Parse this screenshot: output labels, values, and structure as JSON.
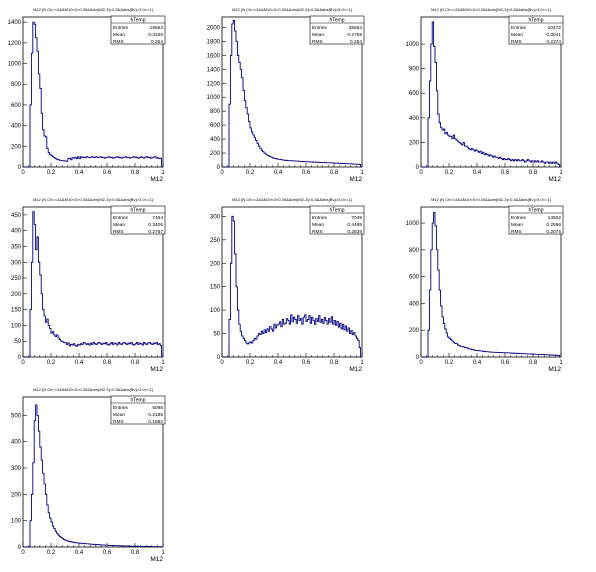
{
  "panels": [
    {
      "title": "M12 {N Ch>=2&&M10<0>0.30&&dm{M2-3}<0.5&&abs{Bv}>3.0<=1}",
      "stats": {
        "name": "hTemp",
        "entries_label": "Entries",
        "entries": "19653",
        "mean_label": "Mean",
        "mean": "0.3156",
        "rms_label": "RMS",
        "rms": "0.264"
      },
      "xlabel": "M12",
      "yticks": [
        0,
        200,
        400,
        600,
        800,
        1000,
        1200,
        1400
      ],
      "ymax": 1450
    },
    {
      "title": "M12 {N Ch>=2&&M10<0>0.30&&dm{M2-3}<0.5&&abs{Bv}>3.0<=1}",
      "stats": {
        "name": "hTemp",
        "entries_label": "Entries",
        "entries": "35564",
        "mean_label": "Mean",
        "mean": "0.2759",
        "rms_label": "RMS",
        "rms": "0.254"
      },
      "xlabel": "M12",
      "yticks": [
        0,
        200,
        400,
        600,
        800,
        1000,
        1200,
        1400,
        1600,
        1800,
        2000
      ],
      "ymax": 2150
    },
    {
      "title": "M12 {N Ch>=2&&M10<0>0.30&&dm{M2-3}<0.5&&abs{Bv}>3.0<=1}",
      "stats": {
        "name": "hTemp",
        "entries_label": "Entries",
        "entries": "10472",
        "mean_label": "Mean",
        "mean": "0.3041",
        "rms_label": "RMS",
        "rms": "0.2374"
      },
      "xlabel": "M12",
      "yticks": [
        0,
        200,
        400,
        600,
        800,
        1000
      ],
      "ymax": 1220
    },
    {
      "title": "M12 {N Ch>=2&&M10<0>0.30&&dm{M2-3}<0.5&&abs{Bv}>3.0<=1}",
      "stats": {
        "name": "hTemp",
        "entries_label": "Entries",
        "entries": "7464",
        "mean_label": "Mean",
        "mean": "0.3406",
        "rms_label": "RMS",
        "rms": "0.2767"
      },
      "xlabel": "M12",
      "yticks": [
        0,
        50,
        100,
        150,
        200,
        250,
        300,
        350,
        400,
        450
      ],
      "ymax": 475
    },
    {
      "title": "M12 {N Ch>=2&&M10<0>0.30&&dm{M2-3}<0.5&&abs{Bv}>3.0<=1}",
      "stats": {
        "name": "hTemp",
        "entries_label": "Entries",
        "entries": "7049",
        "mean_label": "Mean",
        "mean": "0.4495",
        "rms_label": "RMS",
        "rms": "0.2839"
      },
      "xlabel": "M12",
      "yticks": [
        0,
        50,
        100,
        150,
        200,
        250,
        300
      ],
      "ymax": 320
    },
    {
      "title": "M12 {N Ch>=2&&M10<0>0.30&&dm{M2-3}<0.5&&abs{Bv}>3.0<=1}",
      "stats": {
        "name": "hTemp",
        "entries_label": "Entries",
        "entries": "13502",
        "mean_label": "Mean",
        "mean": "0.2596",
        "rms_label": "RMS",
        "rms": "0.2075"
      },
      "xlabel": "M12",
      "yticks": [
        0,
        200,
        400,
        600,
        800,
        1000
      ],
      "ymax": 1120
    },
    {
      "title": "M12 {N Ch>=2&&M10<0>0.30&&dm{M2-3}<0.5&&abs{Bv}>3.0<=1}",
      "stats": {
        "name": "hTemp",
        "entries_label": "Entries",
        "entries": "6098",
        "mean_label": "Mean",
        "mean": "0.2185",
        "rms_label": "RMS",
        "rms": "0.1582"
      },
      "xlabel": "M12",
      "yticks": [
        0,
        100,
        200,
        300,
        400,
        500
      ],
      "ymax": 570
    }
  ],
  "xticks": [
    0,
    0.2,
    0.4,
    0.6,
    0.8,
    1
  ],
  "xtick_labels": [
    "0",
    "0.2",
    "0.4",
    "0.6",
    "0.8",
    "1"
  ],
  "colors": {
    "line": "#00007f",
    "frame": "#000000",
    "background": "#ffffff"
  },
  "chart_data": [
    {
      "type": "bar",
      "histogram": true,
      "xlim": [
        0,
        1
      ],
      "ylim": [
        0,
        1450
      ],
      "xlabel": "M12",
      "bins": 100,
      "values": [
        0,
        0,
        0,
        0,
        0,
        600,
        1100,
        1400,
        1380,
        1250,
        1120,
        900,
        760,
        520,
        360,
        300,
        290,
        180,
        140,
        120,
        110,
        100,
        90,
        80,
        75,
        70,
        65,
        65,
        60,
        60,
        58,
        55,
        80,
        85,
        70,
        90,
        85,
        95,
        80,
        100,
        80,
        100,
        90,
        95,
        90,
        100,
        95,
        90,
        95,
        100,
        90,
        95,
        100,
        90,
        95,
        100,
        90,
        95,
        85,
        90,
        95,
        100,
        90,
        95,
        85,
        90,
        95,
        100,
        90,
        95,
        85,
        90,
        95,
        100,
        90,
        95,
        85,
        90,
        95,
        100,
        90,
        95,
        85,
        90,
        100,
        90,
        85,
        95,
        100,
        90,
        95,
        85,
        90,
        95,
        100,
        85,
        90,
        80,
        85,
        0
      ]
    },
    {
      "type": "bar",
      "histogram": true,
      "xlim": [
        0,
        1
      ],
      "ylim": [
        0,
        2150
      ],
      "xlabel": "M12",
      "bins": 100,
      "values": [
        0,
        0,
        0,
        0,
        0,
        900,
        1600,
        2050,
        2100,
        1950,
        1800,
        1600,
        1500,
        1400,
        1280,
        1100,
        950,
        850,
        760,
        650,
        560,
        500,
        460,
        420,
        380,
        340,
        300,
        270,
        240,
        220,
        200,
        185,
        170,
        160,
        150,
        140,
        130,
        125,
        120,
        115,
        110,
        110,
        105,
        100,
        100,
        95,
        95,
        90,
        90,
        90,
        88,
        88,
        85,
        85,
        85,
        80,
        80,
        80,
        78,
        78,
        75,
        75,
        75,
        72,
        72,
        70,
        70,
        70,
        68,
        68,
        65,
        65,
        65,
        62,
        62,
        60,
        60,
        60,
        58,
        58,
        55,
        55,
        55,
        52,
        52,
        50,
        50,
        50,
        48,
        48,
        45,
        45,
        45,
        42,
        42,
        40,
        40,
        38,
        36,
        0
      ]
    },
    {
      "type": "bar",
      "histogram": true,
      "xlim": [
        0,
        1
      ],
      "ylim": [
        0,
        1220
      ],
      "xlabel": "M12",
      "bins": 100,
      "values": [
        0,
        0,
        0,
        0,
        0,
        400,
        700,
        1000,
        1180,
        980,
        850,
        620,
        430,
        360,
        320,
        300,
        310,
        270,
        280,
        260,
        250,
        250,
        230,
        260,
        230,
        220,
        210,
        200,
        190,
        180,
        200,
        170,
        170,
        160,
        150,
        140,
        150,
        140,
        130,
        140,
        130,
        120,
        130,
        110,
        120,
        100,
        110,
        100,
        90,
        100,
        90,
        80,
        90,
        80,
        80,
        70,
        80,
        70,
        60,
        70,
        60,
        60,
        70,
        60,
        50,
        60,
        50,
        60,
        50,
        60,
        50,
        50,
        60,
        50,
        40,
        50,
        60,
        50,
        40,
        50,
        40,
        50,
        40,
        50,
        40,
        40,
        50,
        40,
        30,
        40,
        40,
        30,
        40,
        30,
        40,
        30,
        40,
        30,
        20,
        0
      ]
    },
    {
      "type": "bar",
      "histogram": true,
      "xlim": [
        0,
        1
      ],
      "ylim": [
        0,
        475
      ],
      "xlabel": "M12",
      "bins": 100,
      "values": [
        0,
        0,
        0,
        0,
        0,
        150,
        300,
        460,
        420,
        340,
        380,
        300,
        260,
        200,
        150,
        130,
        110,
        120,
        100,
        90,
        75,
        80,
        70,
        65,
        70,
        60,
        55,
        50,
        48,
        46,
        45,
        40,
        45,
        35,
        40,
        38,
        42,
        36,
        34,
        40,
        38,
        42,
        40,
        46,
        44,
        40,
        42,
        38,
        44,
        40,
        46,
        42,
        40,
        44,
        46,
        42,
        40,
        44,
        42,
        46,
        40,
        38,
        42,
        46,
        40,
        44,
        42,
        38,
        46,
        42,
        40,
        44,
        46,
        42,
        40,
        44,
        42,
        46,
        40,
        38,
        42,
        46,
        40,
        44,
        42,
        38,
        46,
        42,
        40,
        44,
        46,
        42,
        40,
        44,
        42,
        46,
        40,
        42,
        36,
        0
      ]
    },
    {
      "type": "bar",
      "histogram": true,
      "xlim": [
        0,
        1
      ],
      "ylim": [
        0,
        320
      ],
      "xlabel": "M12",
      "bins": 100,
      "values": [
        0,
        0,
        0,
        0,
        0,
        80,
        200,
        300,
        290,
        220,
        150,
        100,
        70,
        55,
        45,
        40,
        35,
        30,
        28,
        30,
        32,
        30,
        35,
        40,
        38,
        45,
        50,
        48,
        55,
        50,
        58,
        52,
        60,
        55,
        65,
        60,
        55,
        70,
        62,
        68,
        70,
        75,
        65,
        80,
        70,
        72,
        82,
        78,
        70,
        90,
        75,
        85,
        80,
        72,
        88,
        78,
        82,
        70,
        85,
        90,
        76,
        80,
        88,
        72,
        85,
        78,
        70,
        82,
        76,
        88,
        74,
        80,
        72,
        84,
        78,
        70,
        82,
        74,
        86,
        70,
        78,
        68,
        76,
        64,
        72,
        60,
        70,
        58,
        66,
        55,
        62,
        50,
        56,
        48,
        52,
        45,
        40,
        35,
        20,
        0
      ]
    },
    {
      "type": "bar",
      "histogram": true,
      "xlim": [
        0,
        1
      ],
      "ylim": [
        0,
        1120
      ],
      "xlabel": "M12",
      "bins": 100,
      "values": [
        0,
        0,
        0,
        0,
        0,
        200,
        500,
        800,
        1000,
        1080,
        980,
        800,
        650,
        500,
        380,
        300,
        250,
        210,
        180,
        150,
        140,
        130,
        120,
        110,
        100,
        100,
        90,
        85,
        80,
        80,
        75,
        70,
        70,
        65,
        60,
        60,
        55,
        55,
        50,
        50,
        48,
        48,
        45,
        45,
        42,
        42,
        40,
        40,
        38,
        38,
        36,
        36,
        35,
        35,
        34,
        34,
        33,
        33,
        32,
        32,
        31,
        31,
        30,
        30,
        29,
        29,
        28,
        28,
        27,
        27,
        26,
        26,
        25,
        25,
        24,
        24,
        23,
        23,
        22,
        22,
        21,
        21,
        20,
        20,
        19,
        19,
        18,
        18,
        17,
        17,
        16,
        16,
        15,
        15,
        14,
        14,
        13,
        13,
        12,
        0
      ]
    },
    {
      "type": "bar",
      "histogram": true,
      "xlim": [
        0,
        1
      ],
      "ylim": [
        0,
        570
      ],
      "xlabel": "M12",
      "bins": 100,
      "values": [
        0,
        0,
        0,
        0,
        0,
        100,
        200,
        320,
        480,
        540,
        500,
        440,
        380,
        330,
        280,
        240,
        200,
        160,
        130,
        110,
        95,
        80,
        70,
        60,
        52,
        45,
        40,
        36,
        32,
        28,
        26,
        24,
        22,
        20,
        20,
        18,
        18,
        16,
        16,
        15,
        15,
        14,
        14,
        13,
        13,
        12,
        12,
        11,
        11,
        10,
        10,
        10,
        9,
        9,
        9,
        8,
        8,
        8,
        7,
        7,
        7,
        6,
        6,
        6,
        6,
        5,
        5,
        5,
        5,
        5,
        4,
        4,
        4,
        4,
        4,
        4,
        3,
        3,
        3,
        3,
        3,
        3,
        3,
        2,
        2,
        2,
        2,
        2,
        2,
        2,
        2,
        2,
        1,
        1,
        1,
        1,
        1,
        1,
        1,
        0
      ]
    }
  ]
}
